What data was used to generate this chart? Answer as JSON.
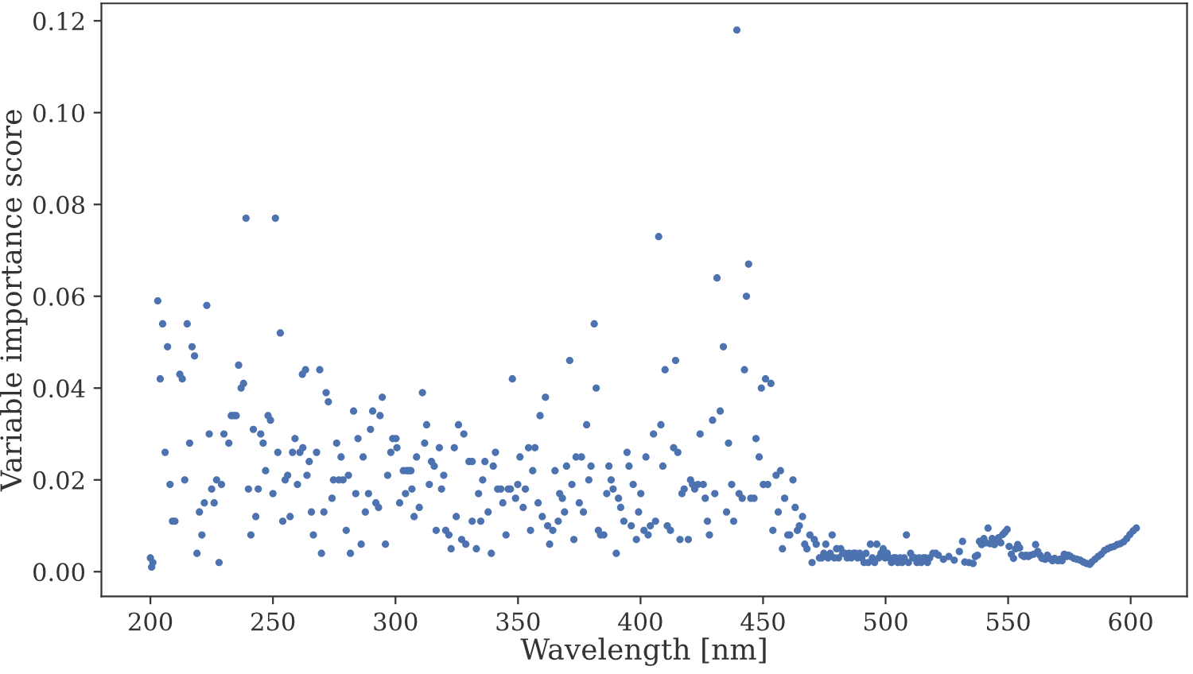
{
  "chart_data": {
    "type": "scatter",
    "xlabel": "Wavelength [nm]",
    "ylabel": "Variable importance score",
    "xlim": [
      180,
      623
    ],
    "ylim": [
      -0.0054,
      0.1238
    ],
    "xticks": [
      200,
      250,
      300,
      350,
      400,
      450,
      500,
      550,
      600
    ],
    "yticks": [
      {
        "value": 0,
        "label": "0.00"
      },
      {
        "value": 0.02,
        "label": "0.02"
      },
      {
        "value": 0.04,
        "label": "0.04"
      },
      {
        "value": 0.06,
        "label": "0.06"
      },
      {
        "value": 0.08,
        "label": "0.08"
      },
      {
        "value": 0.1,
        "label": "0.10"
      },
      {
        "value": 0.12,
        "label": "0.12"
      }
    ],
    "grid": false,
    "legend": false,
    "marker": "circle",
    "series": [
      {
        "color": "#4c72b0",
        "x": [
          200,
          200.5,
          201,
          203,
          204,
          205,
          206,
          207,
          208,
          209,
          210,
          212,
          213,
          214,
          215,
          216,
          217,
          218,
          219,
          220,
          221,
          222,
          223,
          224,
          225,
          226,
          227,
          228,
          229,
          230,
          232,
          233,
          234,
          235,
          236,
          237,
          238,
          239,
          240,
          241,
          242,
          243,
          244,
          245,
          246,
          247,
          248,
          249,
          250,
          251,
          252,
          253,
          254,
          255,
          256,
          257,
          258,
          259,
          260,
          261,
          262,
          263.3,
          269.1,
          271.7,
          272.6,
          262.2,
          264.8,
          263.9,
          267.8,
          265.7,
          266.5,
          270.8,
          269.8,
          274.1,
          274.7,
          276.0,
          277.8,
          276.9,
          278.6,
          280.8,
          279.9,
          281.6,
          282.9,
          283.8,
          284.7,
          286.0,
          286.8,
          287.7,
          289.0,
          289.8,
          290.7,
          292.0,
          293.1,
          293.7,
          294.6,
          295.9,
          296.8,
          298.1,
          298.9,
          300.2,
          300.6,
          301.7,
          303.2,
          304.1,
          304.5,
          305.4,
          306.3,
          306.7,
          307.6,
          308.6,
          309.7,
          311.0,
          311.9,
          312.7,
          313.8,
          314.7,
          315.8,
          316.6,
          317.9,
          318.8,
          319.7,
          320.5,
          321.8,
          322.7,
          324.0,
          324.8,
          325.7,
          327.0,
          327.9,
          328.7,
          330.0,
          331.3,
          331.3,
          333.0,
          333.9,
          334.8,
          335.6,
          336.5,
          337.8,
          339.1,
          339.9,
          340.8,
          341.7,
          343.0,
          343.8,
          345.1,
          346.0,
          346.9,
          347.7,
          349.0,
          349.9,
          350.8,
          352.1,
          353.0,
          354.3,
          355.1,
          356.0,
          356.9,
          358.2,
          359.0,
          359.9,
          361.2,
          362.1,
          362.9,
          364.2,
          365.1,
          366.4,
          367.0,
          368.1,
          369.0,
          369.8,
          371.1,
          372.0,
          372.8,
          373.7,
          375.0,
          375.9,
          376.7,
          378.0,
          378.9,
          379.8,
          381.1,
          381.9,
          382.8,
          383.7,
          385.0,
          386.2,
          387.1,
          388.0,
          388.8,
          390.1,
          391.0,
          391.9,
          393.2,
          394.5,
          395.3,
          396.2,
          397.0,
          398.3,
          399.2,
          400.1,
          401.4,
          402.2,
          403.1,
          404.0,
          405.3,
          406.1,
          407.4,
          408.3,
          409.1,
          410.0,
          410.9,
          412.2,
          413.5,
          414.3,
          415.2,
          416.1,
          416.9,
          417.8,
          419.5,
          420.4,
          421.2,
          422.1,
          423.4,
          424.3,
          425.6,
          426.4,
          427.3,
          428.1,
          429.4,
          430.3,
          431.2,
          432.5,
          433.8,
          435.1,
          435.9,
          437.2,
          438.0,
          439.3,
          440.2,
          441.5,
          442.4,
          443.2,
          444.1,
          445.0,
          446.3,
          447.1,
          448.4,
          449.3,
          450.1,
          451.0,
          451.9,
          453.2,
          454.0,
          455.3,
          456.2,
          457.1,
          457.9,
          458.8,
          460.1,
          460.9,
          462.2,
          463.1,
          464.0,
          464.8,
          466.1,
          467.0,
          467.9,
          469.1,
          470.0,
          470.9,
          471.7,
          473.0,
          473.9,
          474.8,
          475.6,
          476.5,
          477.4,
          478.2,
          479.1,
          480.0,
          480.8,
          481.7,
          482.5,
          483.4,
          484.3,
          485.1,
          486.0,
          486.9,
          487.7,
          488.6,
          489.5,
          490.3,
          491.2,
          492.0,
          492.9,
          493.8,
          494.6,
          495.5,
          496.4,
          497.2,
          498.1,
          499.0,
          499.8,
          500.7,
          501.5,
          502.4,
          503.3,
          504.1,
          505.0,
          505.9,
          506.7,
          507.6,
          508.5,
          509.3,
          510.2,
          511.1,
          511.9,
          512.8,
          513.6,
          514.5,
          515.4,
          516.2,
          517.1,
          518.0,
          519.3,
          520.5,
          521.5,
          523.6,
          525.8,
          528.0,
          530.1,
          531.4,
          532.3,
          534.0,
          535.7,
          536.6,
          537.5,
          538.3,
          539.2,
          540.1,
          540.9,
          541.8,
          542.6,
          543.5,
          544.4,
          545.2,
          546.1,
          547.0,
          547.8,
          548.7,
          549.6,
          550.4,
          551.3,
          552.2,
          553.0,
          553.9,
          554.7,
          555.6,
          556.5,
          557.3,
          558.2,
          559.1,
          560.4,
          561.2,
          562.1,
          563.0,
          563.8,
          565.1,
          566.0,
          566.8,
          568.1,
          569.0,
          570.3,
          571.2,
          572.0,
          572.9,
          573.8,
          574.6,
          575.5,
          576.8,
          578.1,
          579.4,
          580.7,
          582.0,
          583.3,
          584.1,
          585.4,
          586.7,
          588.0,
          589.3,
          590.6,
          591.9,
          593.2,
          594.5,
          595.8,
          597.1,
          598.4,
          599.7,
          601.0,
          602.3
        ],
        "values": [
          0.003,
          0.001,
          0.002,
          0.059,
          0.042,
          0.054,
          0.026,
          0.049,
          0.019,
          0.011,
          0.011,
          0.043,
          0.042,
          0.02,
          0.054,
          0.028,
          0.049,
          0.047,
          0.004,
          0.013,
          0.008,
          0.015,
          0.058,
          0.03,
          0.018,
          0.015,
          0.02,
          0.002,
          0.019,
          0.03,
          0.028,
          0.034,
          0.034,
          0.034,
          0.045,
          0.04,
          0.041,
          0.077,
          0.018,
          0.008,
          0.031,
          0.012,
          0.018,
          0.03,
          0.028,
          0.022,
          0.034,
          0.033,
          0.017,
          0.077,
          0.026,
          0.052,
          0.011,
          0.02,
          0.021,
          0.012,
          0.026,
          0.029,
          0.019,
          0.026,
          0.043,
          0.044,
          0.044,
          0.039,
          0.037,
          0.027,
          0.024,
          0.021,
          0.026,
          0.013,
          0.008,
          0.013,
          0.004,
          0.016,
          0.02,
          0.028,
          0.025,
          0.02,
          0.02,
          0.021,
          0.009,
          0.004,
          0.035,
          0.017,
          0.029,
          0.006,
          0.025,
          0.013,
          0.017,
          0.031,
          0.035,
          0.015,
          0.014,
          0.034,
          0.038,
          0.006,
          0.021,
          0.026,
          0.029,
          0.029,
          0.027,
          0.015,
          0.022,
          0.017,
          0.022,
          0.022,
          0.022,
          0.018,
          0.012,
          0.025,
          0.014,
          0.039,
          0.028,
          0.032,
          0.019,
          0.024,
          0.023,
          0.009,
          0.027,
          0.018,
          0.021,
          0.009,
          0.008,
          0.005,
          0.027,
          0.012,
          0.032,
          0.007,
          0.03,
          0.006,
          0.024,
          0.024,
          0.011,
          0.005,
          0.017,
          0.011,
          0.02,
          0.024,
          0.013,
          0.004,
          0.023,
          0.026,
          0.018,
          0.018,
          0.015,
          0.008,
          0.018,
          0.018,
          0.042,
          0.016,
          0.019,
          0.025,
          0.014,
          0.018,
          0.027,
          0.009,
          0.022,
          0.027,
          0.015,
          0.034,
          0.012,
          0.038,
          0.01,
          0.006,
          0.009,
          0.022,
          0.011,
          0.017,
          0.016,
          0.013,
          0.023,
          0.046,
          0.019,
          0.007,
          0.025,
          0.015,
          0.025,
          0.013,
          0.032,
          0.02,
          0.023,
          0.054,
          0.04,
          0.009,
          0.008,
          0.008,
          0.017,
          0.023,
          0.02,
          0.018,
          0.004,
          0.016,
          0.014,
          0.011,
          0.026,
          0.023,
          0.01,
          0.019,
          0.007,
          0.013,
          0.017,
          0.009,
          0.025,
          0.008,
          0.01,
          0.03,
          0.011,
          0.073,
          0.032,
          0.023,
          0.044,
          0.01,
          0.009,
          0.027,
          0.046,
          0.026,
          0.007,
          0.017,
          0.018,
          0.007,
          0.02,
          0.019,
          0.018,
          0.019,
          0.03,
          0.019,
          0.016,
          0.011,
          0.008,
          0.033,
          0.017,
          0.064,
          0.035,
          0.049,
          0.013,
          0.028,
          0.019,
          0.011,
          0.118,
          0.017,
          0.016,
          0.044,
          0.06,
          0.067,
          0.016,
          0.016,
          0.029,
          0.025,
          0.04,
          0.019,
          0.042,
          0.019,
          0.041,
          0.009,
          0.021,
          0.013,
          0.022,
          0.005,
          0.016,
          0.008,
          0.008,
          0.02,
          0.014,
          0.009,
          0.01,
          0.012,
          0.006,
          0.005,
          0.008,
          0.002,
          0.007,
          0.006,
          0.003,
          0.003,
          0.004,
          0.006,
          0.003,
          0.004,
          0.008,
          0.003,
          0.005,
          0.003,
          0.005,
          0.004,
          0.004,
          0.003,
          0.004,
          0.003,
          0.004,
          0.004,
          0.003,
          0.004,
          0.003,
          0.002,
          0.004,
          0.002,
          0.006,
          0.003,
          0.002,
          0.006,
          0.003,
          0.004,
          0.005,
          0.003,
          0.004,
          0.003,
          0.002,
          0.003,
          0.003,
          0.002,
          0.003,
          0.002,
          0.003,
          0.008,
          0.002,
          0.004,
          0.003,
          0.003,
          0.002,
          0.003,
          0.002,
          0.003,
          0.003,
          0.002,
          0.003,
          0.004,
          0.004,
          0.0036,
          0.0027,
          0.0033,
          0.0025,
          0.0044,
          0.0066,
          0.0021,
          0.002,
          0.0018,
          0.0033,
          0.0036,
          0.0066,
          0.0059,
          0.0072,
          0.0063,
          0.0095,
          0.0061,
          0.0072,
          0.0059,
          0.0066,
          0.0074,
          0.0063,
          0.0081,
          0.0086,
          0.0092,
          0.0055,
          0.0038,
          0.0029,
          0.005,
          0.0059,
          0.0052,
          0.0036,
          0.0033,
          0.0036,
          0.0033,
          0.0036,
          0.0038,
          0.0059,
          0.0044,
          0.0036,
          0.0029,
          0.0027,
          0.0036,
          0.0029,
          0.0024,
          0.0029,
          0.0024,
          0.0027,
          0.0024,
          0.0038,
          0.0033,
          0.0036,
          0.0033,
          0.0029,
          0.0027,
          0.0025,
          0.0021,
          0.0018,
          0.0016,
          0.0021,
          0.0027,
          0.0033,
          0.0038,
          0.0046,
          0.005,
          0.0053,
          0.0055,
          0.0059,
          0.0061,
          0.0065,
          0.0072,
          0.0081,
          0.0089,
          0.0095
        ]
      }
    ]
  }
}
